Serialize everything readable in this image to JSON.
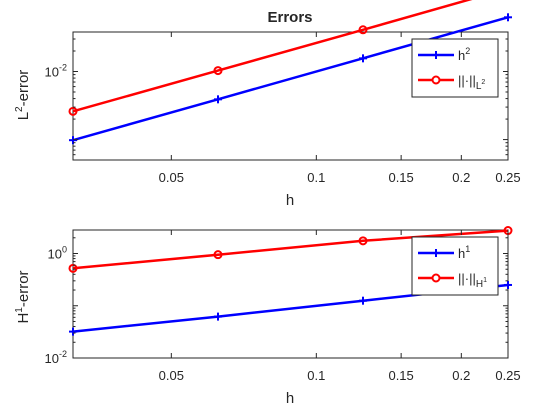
{
  "colors": {
    "blue": "#0000ff",
    "red": "#ff0000",
    "axis": "#262626"
  },
  "chart_data": [
    {
      "type": "line",
      "title": "Errors",
      "xlabel": "h",
      "ylabel": "L²-error",
      "xscale": "log",
      "yscale": "log",
      "xlim": [
        0.03125,
        0.25
      ],
      "ylim_decades": [
        -3.3,
        -1.42
      ],
      "x_ticks": [
        0.05,
        0.1,
        0.15,
        0.2,
        0.25
      ],
      "x_tick_labels": [
        "0.05",
        "0.1",
        "0.15",
        "0.2",
        "0.25"
      ],
      "y_ticks": [
        0.01
      ],
      "y_tick_labels": [
        {
          "base": "10",
          "exp": "-2"
        }
      ],
      "legend_position": "top-right",
      "series": [
        {
          "name": "h²",
          "legend_base": "h",
          "legend_sup": "2",
          "color": "#0000ff",
          "marker": "plus",
          "x": [
            0.03125,
            0.0625,
            0.125,
            0.25
          ],
          "y": [
            0.00098,
            0.0039,
            0.0156,
            0.0625
          ]
        },
        {
          "name": "||·||L²",
          "legend_base": "||·||",
          "legend_sub": "L",
          "legend_subsup": "2",
          "color": "#ff0000",
          "marker": "circle",
          "x": [
            0.03125,
            0.0625,
            0.125,
            0.25
          ],
          "y": [
            0.0026,
            0.0103,
            0.041,
            0.165
          ]
        }
      ]
    },
    {
      "type": "line",
      "title": "",
      "xlabel": "h",
      "ylabel": "H¹-error",
      "xscale": "log",
      "yscale": "log",
      "xlim": [
        0.03125,
        0.25
      ],
      "ylim_decades": [
        -2,
        0.45
      ],
      "x_ticks": [
        0.05,
        0.1,
        0.15,
        0.2,
        0.25
      ],
      "x_tick_labels": [
        "0.05",
        "0.1",
        "0.15",
        "0.2",
        "0.25"
      ],
      "y_ticks": [
        0.01,
        1
      ],
      "y_tick_labels": [
        {
          "base": "10",
          "exp": "-2"
        },
        {
          "base": "10",
          "exp": "0"
        }
      ],
      "legend_position": "top-right",
      "series": [
        {
          "name": "h¹",
          "legend_base": "h",
          "legend_sup": "1",
          "color": "#0000ff",
          "marker": "plus",
          "x": [
            0.03125,
            0.0625,
            0.125,
            0.25
          ],
          "y": [
            0.032,
            0.062,
            0.125,
            0.25
          ]
        },
        {
          "name": "||·||H¹",
          "legend_base": "||·||",
          "legend_sub": "H",
          "legend_subsup": "1",
          "color": "#ff0000",
          "marker": "circle",
          "x": [
            0.03125,
            0.0625,
            0.125,
            0.25
          ],
          "y": [
            0.52,
            0.95,
            1.75,
            2.75
          ]
        }
      ]
    }
  ]
}
